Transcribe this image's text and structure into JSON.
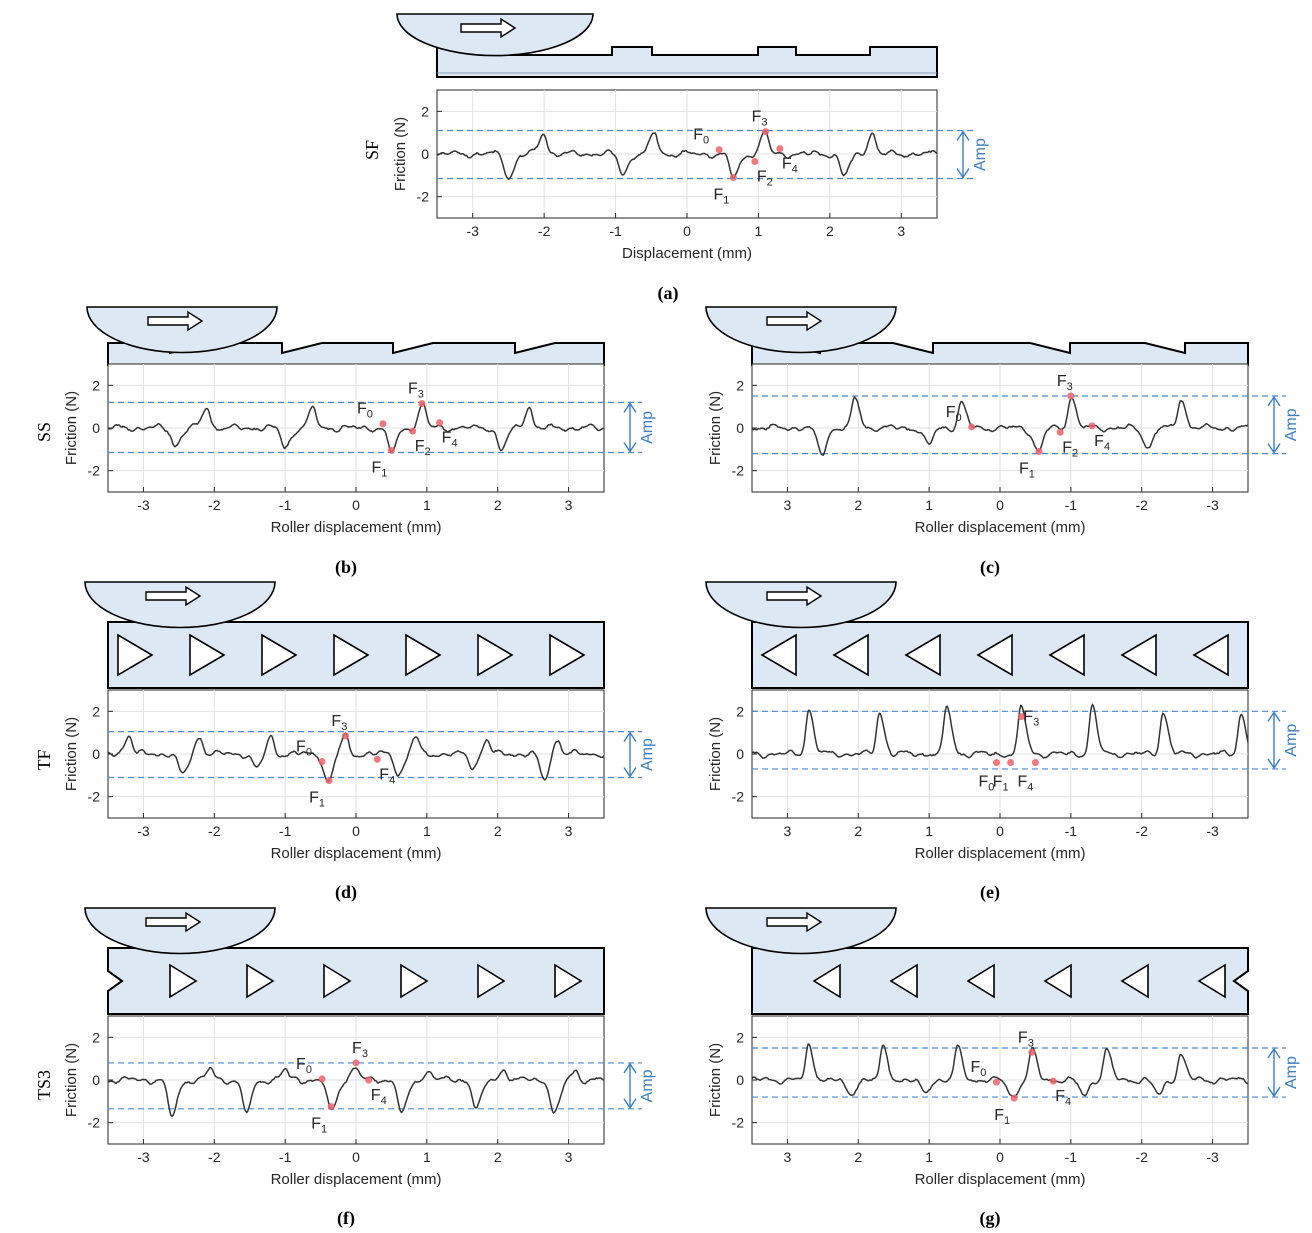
{
  "colors": {
    "surface_fill": "#dce8f4",
    "dash_blue": "#4a8ad4",
    "amp_blue": "#3b7fc4",
    "marker_red": "#f0606a",
    "trace": "#333333"
  },
  "chart_data": [
    {
      "id": "a",
      "caption": "(a)",
      "row_label": "SF",
      "type": "line",
      "surface": "sine-flat",
      "roller_arrow": "right-arrow-icon",
      "xlabel": "Displacement (mm)",
      "ylabel": "Friction (N)",
      "xlim": [
        -3.5,
        3.5
      ],
      "ylim": [
        -3,
        3
      ],
      "x_reversed": false,
      "xticks": [
        -3,
        -2,
        -1,
        0,
        1,
        2,
        3
      ],
      "yticks": [
        -2,
        0,
        2
      ],
      "amp_label": "Amp",
      "amp_upper": 1.1,
      "amp_lower": -1.15,
      "peaks": [
        {
          "x": -2.0,
          "type": "up",
          "a": 1.0
        },
        {
          "x": -0.45,
          "type": "up",
          "a": 1.0
        },
        {
          "x": 1.1,
          "type": "up",
          "a": 1.05
        },
        {
          "x": 2.6,
          "type": "up",
          "a": 1.0
        },
        {
          "x": -2.5,
          "type": "down",
          "a": 1.1
        },
        {
          "x": -0.9,
          "type": "down",
          "a": 0.9
        },
        {
          "x": 0.65,
          "type": "down",
          "a": 1.1
        },
        {
          "x": 2.2,
          "type": "down",
          "a": 1.0
        }
      ],
      "markers": [
        {
          "name": "F",
          "sub": "0",
          "x": 0.45,
          "y": 0.2,
          "label_pos": "up-left"
        },
        {
          "name": "F",
          "sub": "1",
          "x": 0.65,
          "y": -1.1,
          "label_pos": "down-left"
        },
        {
          "name": "F",
          "sub": "2",
          "x": 0.95,
          "y": -0.35,
          "label_pos": "down-right"
        },
        {
          "name": "F",
          "sub": "3",
          "x": 1.1,
          "y": 1.05,
          "label_pos": "up"
        },
        {
          "name": "F",
          "sub": "4",
          "x": 1.3,
          "y": 0.25,
          "label_pos": "down-right"
        }
      ]
    },
    {
      "id": "b",
      "caption": "(b)",
      "row_label": "SS",
      "type": "line",
      "surface": "sawtooth-forward",
      "roller_arrow": "right-arrow-icon",
      "xlabel": "Roller displacement (mm)",
      "ylabel": "Friction (N)",
      "xlim": [
        -3.5,
        3.5
      ],
      "ylim": [
        -3,
        3
      ],
      "x_reversed": false,
      "xticks": [
        -3,
        -2,
        -1,
        0,
        1,
        2,
        3
      ],
      "yticks": [
        -2,
        0,
        2
      ],
      "amp_label": "Amp",
      "amp_upper": 1.2,
      "amp_lower": -1.15,
      "peaks": [
        {
          "x": -2.1,
          "type": "up",
          "a": 1.0
        },
        {
          "x": -0.6,
          "type": "up",
          "a": 0.9
        },
        {
          "x": 0.95,
          "type": "up",
          "a": 1.1
        },
        {
          "x": 2.45,
          "type": "up",
          "a": 1.0
        },
        {
          "x": -2.55,
          "type": "down",
          "a": 0.8
        },
        {
          "x": -1.0,
          "type": "down",
          "a": 0.9
        },
        {
          "x": 0.5,
          "type": "down",
          "a": 1.1
        },
        {
          "x": 2.05,
          "type": "down",
          "a": 1.0
        }
      ],
      "markers": [
        {
          "name": "F",
          "sub": "0",
          "x": 0.38,
          "y": 0.2,
          "label_pos": "up-left"
        },
        {
          "name": "F",
          "sub": "1",
          "x": 0.5,
          "y": -1.05,
          "label_pos": "down-left"
        },
        {
          "name": "F",
          "sub": "2",
          "x": 0.8,
          "y": -0.15,
          "label_pos": "down-right"
        },
        {
          "name": "F",
          "sub": "3",
          "x": 0.93,
          "y": 1.15,
          "label_pos": "up"
        },
        {
          "name": "F",
          "sub": "4",
          "x": 1.18,
          "y": 0.25,
          "label_pos": "down-right"
        }
      ]
    },
    {
      "id": "c",
      "caption": "(c)",
      "row_label": "",
      "type": "line",
      "surface": "sawtooth-reverse",
      "roller_arrow": "right-arrow-icon",
      "xlabel": "Roller displacement (mm)",
      "ylabel": "Friction (N)",
      "xlim": [
        -3.5,
        3.5
      ],
      "ylim": [
        -3,
        3
      ],
      "x_reversed": true,
      "xticks": [
        3,
        2,
        1,
        0,
        -1,
        -2,
        -3
      ],
      "yticks": [
        -2,
        0,
        2
      ],
      "amp_label": "Amp",
      "amp_upper": 1.5,
      "amp_lower": -1.2,
      "peaks": [
        {
          "x": 2.05,
          "type": "up",
          "a": 1.4
        },
        {
          "x": 0.55,
          "type": "up",
          "a": 1.2
        },
        {
          "x": -1.0,
          "type": "up",
          "a": 1.5
        },
        {
          "x": -2.55,
          "type": "up",
          "a": 1.4
        },
        {
          "x": 2.5,
          "type": "down",
          "a": 1.2
        },
        {
          "x": 1.0,
          "type": "down",
          "a": 0.8
        },
        {
          "x": -0.55,
          "type": "down",
          "a": 1.1
        },
        {
          "x": -2.1,
          "type": "down",
          "a": 0.9
        }
      ],
      "markers": [
        {
          "name": "F",
          "sub": "0",
          "x": 0.4,
          "y": 0.05,
          "label_pos": "up-left"
        },
        {
          "name": "F",
          "sub": "1",
          "x": -0.55,
          "y": -1.1,
          "label_pos": "down-left"
        },
        {
          "name": "F",
          "sub": "2",
          "x": -0.85,
          "y": -0.2,
          "label_pos": "down-right"
        },
        {
          "name": "F",
          "sub": "3",
          "x": -1.0,
          "y": 1.5,
          "label_pos": "up"
        },
        {
          "name": "F",
          "sub": "4",
          "x": -1.3,
          "y": 0.1,
          "label_pos": "down-right"
        }
      ]
    },
    {
      "id": "d",
      "caption": "(d)",
      "row_label": "TF",
      "type": "line",
      "surface": "triangles-right",
      "roller_arrow": "right-arrow-icon",
      "xlabel": "Roller displacement (mm)",
      "ylabel": "Friction (N)",
      "xlim": [
        -3.5,
        3.5
      ],
      "ylim": [
        -3,
        3
      ],
      "x_reversed": false,
      "xticks": [
        -3,
        -2,
        -1,
        0,
        1,
        2,
        3
      ],
      "yticks": [
        -2,
        0,
        2
      ],
      "amp_label": "Amp",
      "amp_upper": 1.05,
      "amp_lower": -1.1,
      "peaks": [
        {
          "x": -3.2,
          "type": "up",
          "a": 0.9
        },
        {
          "x": -2.2,
          "type": "up",
          "a": 0.8
        },
        {
          "x": -1.2,
          "type": "up",
          "a": 0.8
        },
        {
          "x": -0.15,
          "type": "up",
          "a": 0.85
        },
        {
          "x": 0.85,
          "type": "up",
          "a": 0.8
        },
        {
          "x": 1.85,
          "type": "up",
          "a": 0.7
        },
        {
          "x": 2.85,
          "type": "up",
          "a": 0.75
        },
        {
          "x": -2.45,
          "type": "down",
          "a": 1.0
        },
        {
          "x": -1.4,
          "type": "down",
          "a": 0.7
        },
        {
          "x": -0.4,
          "type": "down",
          "a": 1.3
        },
        {
          "x": 0.6,
          "type": "down",
          "a": 0.9
        },
        {
          "x": 1.65,
          "type": "down",
          "a": 0.6
        },
        {
          "x": 2.65,
          "type": "down",
          "a": 1.2
        }
      ],
      "markers": [
        {
          "name": "F",
          "sub": "0",
          "x": -0.48,
          "y": -0.35,
          "label_pos": "up-left"
        },
        {
          "name": "F",
          "sub": "1",
          "x": -0.38,
          "y": -1.25,
          "label_pos": "down-left"
        },
        {
          "name": "F",
          "sub": "3",
          "x": -0.15,
          "y": 0.85,
          "label_pos": "up"
        },
        {
          "name": "F",
          "sub": "4",
          "x": 0.3,
          "y": -0.25,
          "label_pos": "down-right"
        }
      ]
    },
    {
      "id": "e",
      "caption": "(e)",
      "row_label": "",
      "type": "line",
      "surface": "triangles-left",
      "roller_arrow": "right-arrow-icon",
      "xlabel": "Roller displacement (mm)",
      "ylabel": "Friction (N)",
      "xlim": [
        -3.5,
        3.5
      ],
      "ylim": [
        -3,
        3
      ],
      "x_reversed": true,
      "xticks": [
        3,
        2,
        1,
        0,
        -1,
        -2,
        -3
      ],
      "yticks": [
        -2,
        0,
        2
      ],
      "amp_label": "Amp",
      "amp_upper": 2.0,
      "amp_lower": -0.7,
      "peaks": [
        {
          "x": 2.7,
          "type": "up",
          "a": 2.1
        },
        {
          "x": 1.7,
          "type": "up",
          "a": 2.0
        },
        {
          "x": 0.75,
          "type": "up",
          "a": 2.2
        },
        {
          "x": -0.3,
          "type": "up",
          "a": 2.2
        },
        {
          "x": -1.3,
          "type": "up",
          "a": 2.2
        },
        {
          "x": -2.3,
          "type": "up",
          "a": 2.0
        },
        {
          "x": -3.4,
          "type": "up",
          "a": 1.9
        }
      ],
      "markers": [
        {
          "name": "F",
          "sub": "0",
          "x": 0.05,
          "y": -0.4,
          "label_pos": "down"
        },
        {
          "name": "F",
          "sub": "1",
          "x": -0.15,
          "y": -0.4,
          "label_pos": "down"
        },
        {
          "name": "F",
          "sub": "3",
          "x": -0.3,
          "y": 1.75,
          "label_pos": "right"
        },
        {
          "name": "F",
          "sub": "4",
          "x": -0.5,
          "y": -0.4,
          "label_pos": "down"
        }
      ]
    },
    {
      "id": "f",
      "caption": "(f)",
      "row_label": "TS3",
      "type": "line",
      "surface": "triangles-right-notched",
      "roller_arrow": "right-arrow-icon",
      "xlabel": "Roller displacement (mm)",
      "ylabel": "Friction (N)",
      "xlim": [
        -3.5,
        3.5
      ],
      "ylim": [
        -3,
        3
      ],
      "x_reversed": false,
      "xticks": [
        -3,
        -2,
        -1,
        0,
        1,
        2,
        3
      ],
      "yticks": [
        -2,
        0,
        2
      ],
      "amp_label": "Amp",
      "amp_upper": 0.8,
      "amp_lower": -1.35,
      "peaks": [
        {
          "x": -2.05,
          "type": "up",
          "a": 0.5
        },
        {
          "x": -1.0,
          "type": "up",
          "a": 0.45
        },
        {
          "x": 0.0,
          "type": "up",
          "a": 0.65
        },
        {
          "x": 1.05,
          "type": "up",
          "a": 0.45
        },
        {
          "x": 2.1,
          "type": "up",
          "a": 0.5
        },
        {
          "x": 3.1,
          "type": "up",
          "a": 0.4
        },
        {
          "x": -2.6,
          "type": "down",
          "a": 1.7
        },
        {
          "x": -1.55,
          "type": "down",
          "a": 1.5
        },
        {
          "x": -0.35,
          "type": "down",
          "a": 1.5
        },
        {
          "x": 0.65,
          "type": "down",
          "a": 1.6
        },
        {
          "x": 1.7,
          "type": "down",
          "a": 1.3
        },
        {
          "x": 2.8,
          "type": "down",
          "a": 1.6
        }
      ],
      "markers": [
        {
          "name": "F",
          "sub": "0",
          "x": -0.48,
          "y": 0.05,
          "label_pos": "up-left"
        },
        {
          "name": "F",
          "sub": "1",
          "x": -0.35,
          "y": -1.25,
          "label_pos": "down-left"
        },
        {
          "name": "F",
          "sub": "3",
          "x": 0.0,
          "y": 0.8,
          "label_pos": "up-right"
        },
        {
          "name": "F",
          "sub": "4",
          "x": 0.18,
          "y": 0.0,
          "label_pos": "down-right"
        }
      ]
    },
    {
      "id": "g",
      "caption": "(g)",
      "row_label": "",
      "type": "line",
      "surface": "triangles-left-notched",
      "roller_arrow": "right-arrow-icon",
      "xlabel": "Roller displacement (mm)",
      "ylabel": "Friction (N)",
      "xlim": [
        -3.5,
        3.5
      ],
      "ylim": [
        -3,
        3
      ],
      "x_reversed": true,
      "xticks": [
        3,
        2,
        1,
        0,
        -1,
        -2,
        -3
      ],
      "yticks": [
        -2,
        0,
        2
      ],
      "amp_label": "Amp",
      "amp_upper": 1.5,
      "amp_lower": -0.8,
      "peaks": [
        {
          "x": 2.7,
          "type": "up",
          "a": 1.6
        },
        {
          "x": 1.65,
          "type": "up",
          "a": 1.5
        },
        {
          "x": 0.6,
          "type": "up",
          "a": 1.5
        },
        {
          "x": -0.45,
          "type": "up",
          "a": 1.4
        },
        {
          "x": -1.5,
          "type": "up",
          "a": 1.4
        },
        {
          "x": -2.55,
          "type": "up",
          "a": 1.2
        },
        {
          "x": 2.1,
          "type": "down",
          "a": 0.7
        },
        {
          "x": 1.05,
          "type": "down",
          "a": 0.6
        },
        {
          "x": -0.2,
          "type": "down",
          "a": 0.8
        },
        {
          "x": -1.2,
          "type": "down",
          "a": 0.7
        },
        {
          "x": -2.25,
          "type": "down",
          "a": 0.7
        }
      ],
      "markers": [
        {
          "name": "F",
          "sub": "0",
          "x": 0.05,
          "y": -0.1,
          "label_pos": "up-left"
        },
        {
          "name": "F",
          "sub": "1",
          "x": -0.2,
          "y": -0.85,
          "label_pos": "down-left"
        },
        {
          "name": "F",
          "sub": "3",
          "x": -0.45,
          "y": 1.3,
          "label_pos": "up"
        },
        {
          "name": "F",
          "sub": "4",
          "x": -0.75,
          "y": -0.05,
          "label_pos": "down-right"
        }
      ]
    }
  ]
}
